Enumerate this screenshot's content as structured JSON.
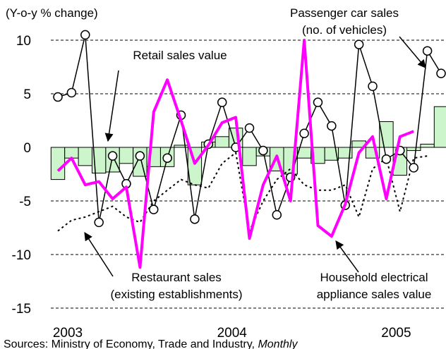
{
  "chart_data": {
    "type": "bar-line",
    "ylabel": "(Y-o-y % change)",
    "source": [
      "Sources: Ministry of Economy, Trade and Industry, ",
      "Monthly"
    ],
    "categories": [
      "2003",
      null,
      null,
      null,
      null,
      null,
      null,
      null,
      null,
      null,
      null,
      null,
      "2004",
      null,
      null,
      null,
      null,
      null,
      null,
      null,
      null,
      null,
      null,
      null,
      "2005",
      null,
      null,
      null,
      null
    ],
    "ylim": [
      -15,
      10
    ],
    "yticks": [
      10,
      5,
      0,
      -5,
      -10,
      -15
    ],
    "grid": true,
    "series": [
      {
        "kind": "bar",
        "color": "#ccf5cc",
        "values": [
          -3.0,
          -1.0,
          -1.7,
          -2.4,
          -2.3,
          -1.5,
          -2.7,
          -1.8,
          -1.8,
          0.2,
          -3.5,
          0.5,
          1.0,
          1.8,
          -1.7,
          -0.8,
          -2.2,
          -2.5,
          -1.0,
          -1.5,
          -1.2,
          -1.0,
          0.6,
          -1.0,
          2.4,
          -2.6,
          -0.3,
          0.3,
          3.8
        ]
      },
      {
        "kind": "line-markers",
        "color": "#000000",
        "values": [
          4.7,
          5.1,
          10.5,
          -7.0,
          -0.8,
          -3.4,
          -0.8,
          -5.8,
          -1.0,
          3.0,
          -6.7,
          0.3,
          4.2,
          0.0,
          1.8,
          -0.3,
          -6.3,
          -2.8,
          1.3,
          4.2,
          2.0,
          -5.4,
          9.6,
          5.7,
          -1.1,
          -0.3,
          -1.9,
          9.0,
          6.9
        ]
      },
      {
        "kind": "line-thick",
        "color": "#ff00ff",
        "values": [
          -2.2,
          -1.0,
          -3.5,
          -3.2,
          -4.8,
          -3.7,
          -11.2,
          3.3,
          6.3,
          2.5,
          -1.5,
          0.2,
          2.3,
          2.8,
          -8.5,
          -3.5,
          -0.8,
          -5.0,
          10.0,
          -7.3,
          -8.3,
          -5.3,
          -0.5,
          1.0,
          -4.8,
          1.0,
          1.5,
          null,
          null
        ]
      },
      {
        "kind": "line-dotted",
        "color": "#000000",
        "values": [
          -7.8,
          -6.8,
          -6.5,
          -6.0,
          -5.5,
          -6.5,
          -7.0,
          -5.0,
          -4.0,
          -3.0,
          -3.5,
          -3.8,
          -1.5,
          -0.5,
          -7.8,
          -5.0,
          -3.0,
          -2.0,
          -3.5,
          -4.0,
          -4.0,
          -3.5,
          -6.5,
          -2.0,
          -1.0,
          -6.0,
          -1.0,
          -0.8,
          null
        ]
      }
    ],
    "annotations": [
      {
        "lines": [
          "Retail sales value"
        ]
      },
      {
        "lines": [
          "Passenger car sales",
          "(no. of vehicles)"
        ]
      },
      {
        "lines": [
          "Restaurant sales",
          "(existing establishments)"
        ]
      },
      {
        "lines": [
          "Household electrical",
          "appliance sales value"
        ]
      }
    ]
  }
}
